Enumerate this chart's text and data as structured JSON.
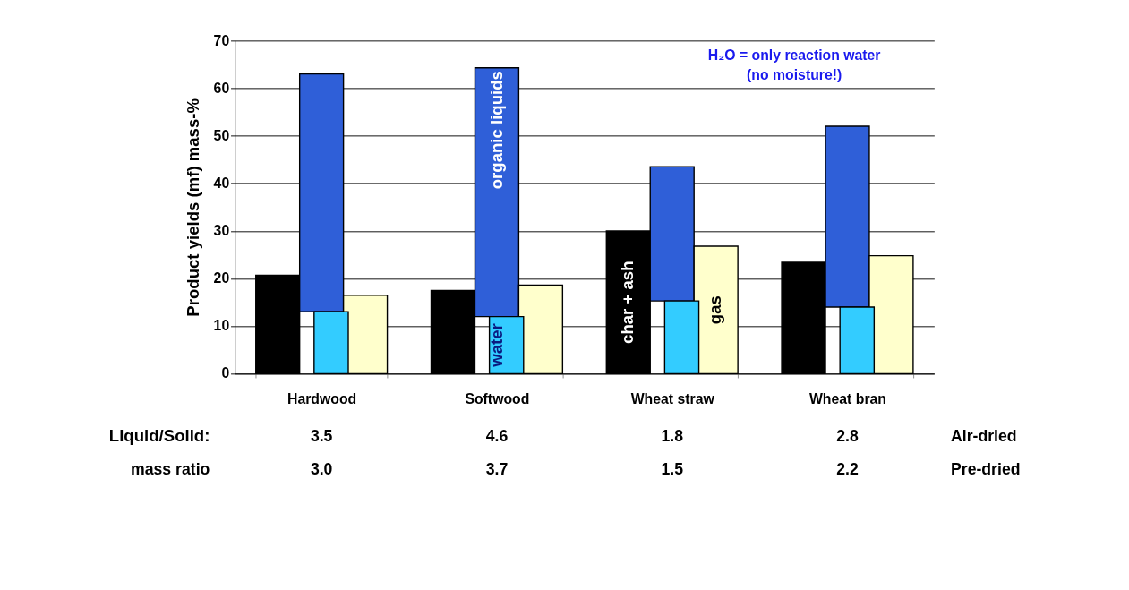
{
  "chart_data": {
    "type": "bar",
    "ylabel": "Product yields (mf) mass-%",
    "categories": [
      "Hardwood",
      "Softwood",
      "Wheat straw",
      "Wheat bran"
    ],
    "series": [
      {
        "name": "char + ash",
        "color": "#000000",
        "values": [
          20.7,
          17.5,
          30.0,
          23.4
        ]
      },
      {
        "name": "water",
        "color": "#33ccff",
        "values": [
          13.0,
          12.0,
          15.3,
          14.0
        ]
      },
      {
        "name": "organic liquids",
        "color": "#2f5fd8",
        "values": [
          50.0,
          52.3,
          28.2,
          38.0
        ],
        "base": [
          13.0,
          12.0,
          15.3,
          14.0
        ]
      },
      {
        "name": "gas",
        "color": "#ffffcc",
        "values": [
          16.5,
          18.6,
          26.8,
          24.8
        ]
      }
    ],
    "ylim": [
      0,
      70
    ],
    "yticks": [
      0,
      10,
      20,
      30,
      40,
      50,
      60,
      70
    ],
    "grid": "y",
    "legend": false,
    "annotations": [
      "H₂O = only reaction water",
      "(no moisture!)",
      "Liquid/Solid:",
      "3.5",
      "4.6",
      "1.8",
      "2.8",
      "Air-dried",
      "mass ratio",
      "3.0",
      "3.7",
      "1.5",
      "2.2",
      "Pre-dried"
    ]
  }
}
